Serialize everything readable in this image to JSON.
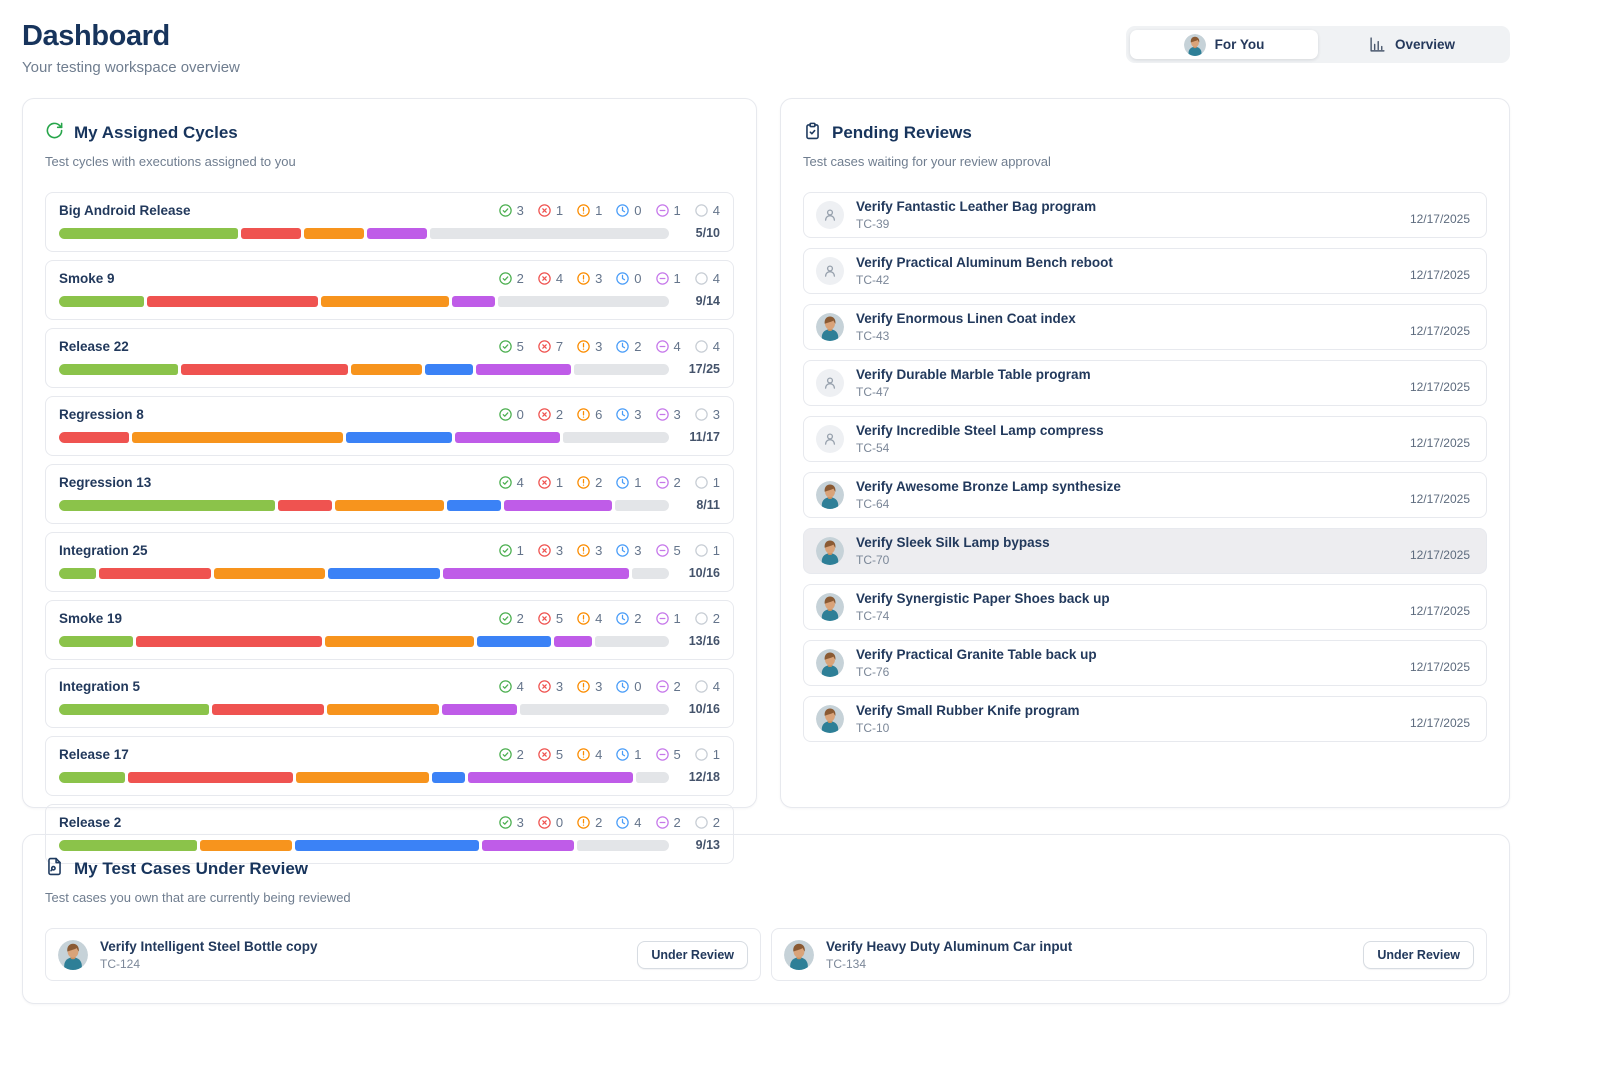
{
  "page": {
    "title": "Dashboard",
    "subtitle": "Your testing workspace overview"
  },
  "tabs": [
    {
      "label": "For You",
      "icon": "user-photo-avatar",
      "active": true
    },
    {
      "label": "Overview",
      "icon": "bar-chart",
      "active": false
    }
  ],
  "colors": {
    "heading_navy": "#17345c",
    "subtitle_gray": "#6f7d8f",
    "border": "#e7e9ee",
    "highlight_row": "#ededf0",
    "refresh_green": "#27a54a"
  },
  "assigned_cycles": {
    "icon": "rotate-cw",
    "title": "My Assigned Cycles",
    "subtitle": "Test cycles with executions assigned to you",
    "status_meta": [
      {
        "key": "passed",
        "icon": "check-circle",
        "icon_color": "#4caf50",
        "bar_color": "#8bc34a"
      },
      {
        "key": "failed",
        "icon": "x-circle",
        "icon_color": "#ef5350",
        "bar_color": "#ef5350"
      },
      {
        "key": "blocked",
        "icon": "alert-circle",
        "icon_color": "#fb8c00",
        "bar_color": "#f7941d"
      },
      {
        "key": "in-progress",
        "icon": "clock",
        "icon_color": "#4a9df8",
        "bar_color": "#3b82f6"
      },
      {
        "key": "skipped",
        "icon": "minus-circle",
        "icon_color": "#c678ea",
        "bar_color": "#bf5ce8"
      },
      {
        "key": "not-executed",
        "icon": "circle",
        "icon_color": "#c7cdd4",
        "bar_color": "#e3e5e8"
      }
    ],
    "cycles": [
      {
        "name": "Big Android Release",
        "counts": [
          3,
          1,
          1,
          0,
          1,
          4
        ],
        "progress": "5/10"
      },
      {
        "name": "Smoke 9",
        "counts": [
          2,
          4,
          3,
          0,
          1,
          4
        ],
        "progress": "9/14"
      },
      {
        "name": "Release 22",
        "counts": [
          5,
          7,
          3,
          2,
          4,
          4
        ],
        "progress": "17/25"
      },
      {
        "name": "Regression 8",
        "counts": [
          0,
          2,
          6,
          3,
          3,
          3
        ],
        "progress": "11/17"
      },
      {
        "name": "Regression 13",
        "counts": [
          4,
          1,
          2,
          1,
          2,
          1
        ],
        "progress": "8/11"
      },
      {
        "name": "Integration 25",
        "counts": [
          1,
          3,
          3,
          3,
          5,
          1
        ],
        "progress": "10/16"
      },
      {
        "name": "Smoke 19",
        "counts": [
          2,
          5,
          4,
          2,
          1,
          2
        ],
        "progress": "13/16"
      },
      {
        "name": "Integration 5",
        "counts": [
          4,
          3,
          3,
          0,
          2,
          4
        ],
        "progress": "10/16"
      },
      {
        "name": "Release 17",
        "counts": [
          2,
          5,
          4,
          1,
          5,
          1
        ],
        "progress": "12/18"
      },
      {
        "name": "Release 2",
        "counts": [
          3,
          0,
          2,
          4,
          2,
          2
        ],
        "progress": "9/13"
      }
    ]
  },
  "pending_reviews": {
    "icon": "clipboard-check",
    "title": "Pending Reviews",
    "subtitle": "Test cases waiting for your review approval",
    "items": [
      {
        "title": "Verify Fantastic Leather Bag program",
        "id": "TC-39",
        "date": "12/17/2025",
        "avatar": "generic",
        "highlighted": false
      },
      {
        "title": "Verify Practical Aluminum Bench reboot",
        "id": "TC-42",
        "date": "12/17/2025",
        "avatar": "generic",
        "highlighted": false
      },
      {
        "title": "Verify Enormous Linen Coat index",
        "id": "TC-43",
        "date": "12/17/2025",
        "avatar": "photo",
        "highlighted": false
      },
      {
        "title": "Verify Durable Marble Table program",
        "id": "TC-47",
        "date": "12/17/2025",
        "avatar": "generic",
        "highlighted": false
      },
      {
        "title": "Verify Incredible Steel Lamp compress",
        "id": "TC-54",
        "date": "12/17/2025",
        "avatar": "generic",
        "highlighted": false
      },
      {
        "title": "Verify Awesome Bronze Lamp synthesize",
        "id": "TC-64",
        "date": "12/17/2025",
        "avatar": "photo",
        "highlighted": false
      },
      {
        "title": "Verify Sleek Silk Lamp bypass",
        "id": "TC-70",
        "date": "12/17/2025",
        "avatar": "photo",
        "highlighted": true
      },
      {
        "title": "Verify Synergistic Paper Shoes back up",
        "id": "TC-74",
        "date": "12/17/2025",
        "avatar": "photo",
        "highlighted": false
      },
      {
        "title": "Verify Practical Granite Table back up",
        "id": "TC-76",
        "date": "12/17/2025",
        "avatar": "photo",
        "highlighted": false
      },
      {
        "title": "Verify Small Rubber Knife program",
        "id": "TC-10",
        "date": "12/17/2025",
        "avatar": "photo",
        "highlighted": false
      }
    ]
  },
  "under_review": {
    "icon": "file-search",
    "title": "My Test Cases Under Review",
    "subtitle": "Test cases you own that are currently being reviewed",
    "badge": "Under Review",
    "items": [
      {
        "title": "Verify Intelligent Steel Bottle copy",
        "id": "TC-124",
        "avatar": "photo"
      },
      {
        "title": "Verify Heavy Duty Aluminum Car input",
        "id": "TC-134",
        "avatar": "photo"
      }
    ]
  }
}
